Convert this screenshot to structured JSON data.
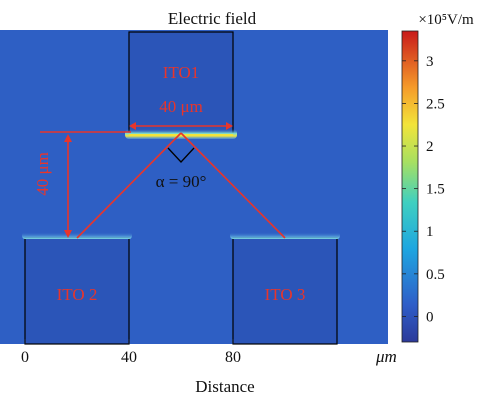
{
  "chart_data": {
    "type": "heatmap",
    "title": "Electric field",
    "xlabel": "Distance",
    "x_unit": "μm",
    "x_ticks": [
      0,
      40,
      80
    ],
    "xlim": [
      -8,
      138
    ],
    "colorbar": {
      "unit_label": "×10⁵V/m",
      "ticks": [
        0,
        0.5,
        1,
        1.5,
        2,
        2.5,
        3
      ],
      "range": [
        -0.3,
        3.35
      ]
    },
    "background_field": 0.55,
    "electrodes": [
      {
        "label": "ITO1",
        "x_start": 40,
        "x_end": 80,
        "position": "top"
      },
      {
        "label": "ITO 2",
        "x_start": 0,
        "x_end": 40,
        "position": "bottom-left"
      },
      {
        "label": "ITO 3",
        "x_start": 80,
        "x_end": 120,
        "position": "bottom-right"
      }
    ],
    "annotations": {
      "width_label": "40 μm",
      "height_label": "40 μm",
      "angle_label": "α = 90°"
    },
    "high_field_edges": [
      {
        "electrode": "ITO1",
        "edge": "bottom",
        "peak": 2.5
      },
      {
        "electrode": "ITO 2",
        "edge": "top",
        "peak": 1.0
      },
      {
        "electrode": "ITO 3",
        "edge": "top",
        "peak": 1.0
      }
    ]
  },
  "colors": {
    "field_background": "#2e5fc4",
    "electrode_interior": "#2b55b8",
    "annotation": "#e8352b",
    "outline": "#000000"
  }
}
